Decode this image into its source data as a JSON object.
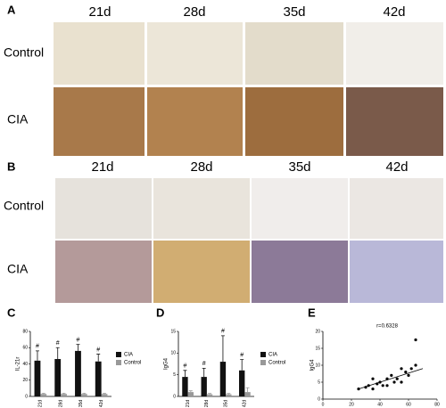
{
  "panel_a": {
    "label": "A",
    "columns": [
      "21d",
      "28d",
      "35d",
      "42d"
    ],
    "rows": [
      "Control",
      "CIA"
    ]
  },
  "panel_b": {
    "label": "B",
    "columns": [
      "21d",
      "28d",
      "35d",
      "42d"
    ],
    "rows": [
      "Control",
      "CIA"
    ]
  },
  "chart_data": [
    {
      "type": "bar",
      "panel": "C",
      "ylabel": "IL-21r",
      "categories": [
        "21d",
        "28d",
        "35d",
        "42d"
      ],
      "series": [
        {
          "name": "CIA",
          "color": "#111111",
          "values": [
            44,
            46,
            56,
            43
          ],
          "errors": [
            12,
            14,
            8,
            9
          ]
        },
        {
          "name": "Control",
          "color": "#999999",
          "values": [
            3,
            3,
            3,
            3
          ],
          "errors": [
            1,
            1,
            1,
            1
          ]
        }
      ],
      "annotations": [
        "#",
        "#",
        "#",
        "#"
      ],
      "ylim": [
        0,
        80
      ],
      "yticks": [
        0,
        20,
        40,
        60,
        80
      ]
    },
    {
      "type": "bar",
      "panel": "D",
      "ylabel": "IgG4",
      "categories": [
        "21d",
        "28d",
        "35d",
        "42d"
      ],
      "series": [
        {
          "name": "CIA",
          "color": "#111111",
          "values": [
            4.5,
            4.5,
            8,
            6
          ],
          "errors": [
            1.5,
            2,
            6,
            2.5
          ]
        },
        {
          "name": "Control",
          "color": "#999999",
          "values": [
            1,
            0.5,
            0.5,
            1
          ],
          "errors": [
            0.3,
            0.2,
            0.2,
            1
          ]
        }
      ],
      "annotations": [
        "#",
        "#",
        "#",
        "#"
      ],
      "ylim": [
        0,
        15
      ],
      "yticks": [
        0,
        5,
        10,
        15
      ]
    },
    {
      "type": "scatter",
      "panel": "E",
      "xlabel": "IL-21r",
      "ylabel": "IgG4",
      "annotation": "r=0.6328",
      "x": [
        25,
        30,
        32,
        35,
        38,
        40,
        42,
        45,
        48,
        50,
        52,
        55,
        58,
        60,
        62,
        65,
        35,
        45,
        55,
        65
      ],
      "y": [
        3,
        3.5,
        4,
        3,
        4.5,
        5,
        4,
        6,
        7,
        5,
        6,
        5,
        8,
        7,
        9,
        10,
        6,
        4,
        9,
        17.5
      ],
      "fit": {
        "x": [
          25,
          70
        ],
        "y": [
          3,
          9
        ]
      },
      "xlim": [
        0,
        80
      ],
      "xticks": [
        0,
        20,
        40,
        60,
        80
      ],
      "ylim": [
        0,
        20
      ],
      "yticks": [
        0,
        5,
        10,
        15,
        20
      ]
    }
  ]
}
